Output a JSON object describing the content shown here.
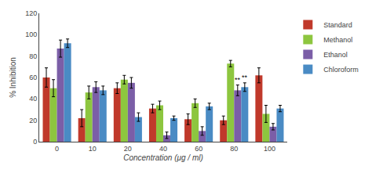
{
  "chart_data": {
    "type": "bar",
    "categories": [
      "0",
      "10",
      "20",
      "40",
      "60",
      "80",
      "100"
    ],
    "series": [
      {
        "name": "Standard",
        "color": "#c0392b",
        "values": [
          60,
          22,
          50,
          31,
          21,
          20,
          62
        ],
        "errors": [
          9,
          8,
          5,
          4,
          5,
          4,
          7
        ]
      },
      {
        "name": "Methanol",
        "color": "#8dc63f",
        "values": [
          50,
          46,
          58,
          34,
          36,
          73,
          26
        ],
        "errors": [
          8,
          6,
          4,
          4,
          4,
          3,
          8
        ]
      },
      {
        "name": "Ethanol",
        "color": "#7b5ea7",
        "values": [
          87,
          51,
          55,
          6,
          10,
          48,
          14
        ],
        "errors": [
          8,
          5,
          5,
          3,
          4,
          5,
          3
        ]
      },
      {
        "name": "Chloroform",
        "color": "#4a8bc4",
        "values": [
          92,
          48,
          23,
          22,
          33,
          51,
          31
        ],
        "errors": [
          4,
          4,
          4,
          2,
          3,
          4,
          3
        ]
      }
    ],
    "annotations": [
      {
        "text": "**",
        "category": "80",
        "series": "Ethanol"
      },
      {
        "text": "**",
        "category": "80",
        "series": "Chloroform"
      }
    ],
    "xlabel": "Concentration (μg / ml)",
    "ylabel": "% Inhibition",
    "ylim": [
      0,
      120
    ],
    "yticks": [
      0,
      20,
      40,
      60,
      80,
      100,
      120
    ],
    "grid": false,
    "legend": "upper right"
  }
}
